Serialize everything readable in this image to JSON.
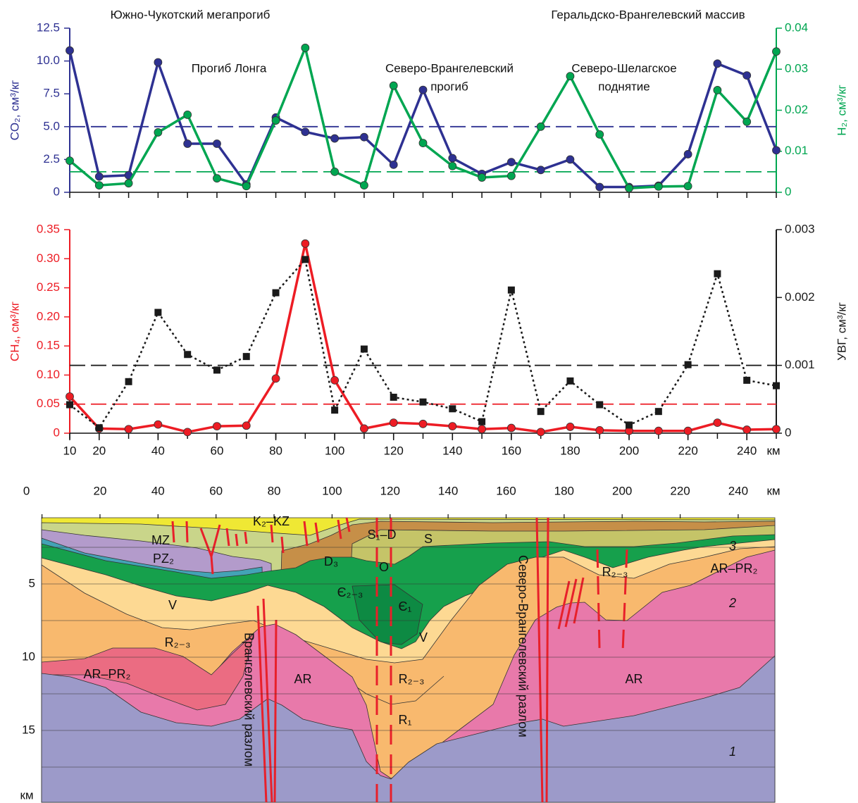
{
  "chart_data": [
    {
      "type": "line",
      "annotations": [
        "Южно-Чукотский мегапрогиб",
        "Геральдско-Врангелевский массив",
        "Прогиб Лонга",
        "Северо-Врангелевский",
        "прогиб",
        "Северо-Шелагское",
        "поднятие"
      ],
      "x": [
        10,
        20,
        30,
        40,
        50,
        60,
        70,
        80,
        90,
        100,
        110,
        120,
        130,
        140,
        150,
        160,
        170,
        180,
        190,
        200,
        210,
        220,
        230,
        240,
        250
      ],
      "xlim": [
        10,
        250
      ],
      "ylim": [
        0,
        12.5
      ],
      "yticks": [
        0,
        2.5,
        {
          "value": 5,
          "label": "5.0"
        },
        7.5,
        {
          "value": 10,
          "label": "10.0"
        },
        12.5
      ],
      "ylabel": "CO₂, см³/кг",
      "y2lim": [
        0,
        0.04
      ],
      "y2ticks": [
        0,
        0.01,
        0.02,
        0.03,
        0.04
      ],
      "y2label": "H₂, см³/кг",
      "hlines": [
        {
          "value": 5,
          "axis": "y",
          "color": "#2e3192"
        },
        {
          "value": 0.005,
          "axis": "y2",
          "color": "#00a651"
        }
      ],
      "series": [
        {
          "color": "#2e3192",
          "marker": "circle",
          "dash": "solid",
          "values": [
            10.8,
            1.2,
            1.3,
            9.9,
            3.7,
            3.7,
            0.6,
            5.7,
            4.6,
            4.1,
            4.2,
            2.1,
            7.8,
            2.6,
            1.4,
            2.3,
            1.7,
            2.5,
            0.4,
            0.4,
            0.5,
            2.9,
            9.8,
            8.9,
            3.2
          ]
        },
        {
          "color": "#00a651",
          "marker": "circle",
          "dash": "solid",
          "axis": "y2",
          "values": [
            0.0077,
            0.0017,
            0.0022,
            0.0146,
            0.0189,
            0.0034,
            0.0015,
            0.0175,
            0.0352,
            0.005,
            0.0017,
            0.026,
            0.012,
            0.0064,
            0.0036,
            0.004,
            0.016,
            0.0283,
            0.0141,
            0.001,
            0.0014,
            0.0015,
            0.0249,
            0.0172,
            0.0343
          ]
        }
      ]
    },
    {
      "type": "line",
      "x": [
        10,
        20,
        30,
        40,
        50,
        60,
        70,
        80,
        90,
        100,
        110,
        120,
        130,
        140,
        150,
        160,
        170,
        180,
        190,
        200,
        210,
        220,
        230,
        240,
        250
      ],
      "xlim": [
        10,
        250
      ],
      "xticks": [
        10,
        20,
        40,
        60,
        80,
        100,
        120,
        140,
        160,
        180,
        200,
        220,
        240
      ],
      "xlabel": "км",
      "ylim": [
        0,
        0.35
      ],
      "yticks": [
        0,
        0.05,
        {
          "value": 0.1,
          "label": "0.10"
        },
        0.15,
        {
          "value": 0.2,
          "label": "0.20"
        },
        0.25,
        {
          "value": 0.3,
          "label": "0.30"
        },
        0.35
      ],
      "ylabel": "CH₄, см³/кг",
      "y2lim": [
        0,
        0.003
      ],
      "y2ticks": [
        0,
        0.001,
        0.002,
        0.003
      ],
      "y2label": "УВГ, см³/кг",
      "hlines": [
        {
          "value": 0.05,
          "axis": "y",
          "color": "#ed1c24"
        },
        {
          "value": 0.001,
          "axis": "y2",
          "color": "#222222"
        }
      ],
      "series": [
        {
          "color": "#ed1c24",
          "marker": "circle",
          "dash": "solid",
          "values": [
            0.063,
            0.008,
            0.007,
            0.015,
            0.002,
            0.012,
            0.013,
            0.094,
            0.326,
            0.091,
            0.008,
            0.018,
            0.016,
            0.012,
            0.007,
            0.009,
            0.002,
            0.011,
            0.005,
            0.004,
            0.004,
            0.004,
            0.018,
            0.006,
            0.007
          ]
        },
        {
          "color": "#1a1a1a",
          "marker": "square",
          "dash": "dotted",
          "axis": "y2",
          "values": [
            0.00042,
            8e-05,
            0.00076,
            0.00178,
            0.00116,
            0.00093,
            0.00113,
            0.00207,
            0.00256,
            0.00034,
            0.00124,
            0.00053,
            0.00046,
            0.00036,
            0.00017,
            0.00211,
            0.00032,
            0.00077,
            0.00042,
            0.00012,
            0.00032,
            0.00101,
            0.00235,
            0.00078,
            0.0007
          ]
        }
      ]
    },
    {
      "type": "section",
      "xlim": [
        0,
        253
      ],
      "xticks": [
        0,
        20,
        40,
        60,
        80,
        100,
        120,
        140,
        160,
        180,
        200,
        220,
        240
      ],
      "xlabel": "км",
      "ylim": [
        0,
        20
      ],
      "yticks": [
        5,
        10,
        15
      ],
      "yminor": [
        2.5,
        7.5,
        12.5,
        17.5
      ],
      "ylabel": "км",
      "labels": [
        "K₂–KZ",
        "MZ",
        "PZ₂",
        "S₁–D",
        "S",
        "D₃",
        "O",
        "Є₂₋₃",
        "Є₁",
        "V",
        "V",
        "R₂₋₃",
        "R₂₋₃",
        "R₁",
        "AR–PR₂",
        "AR",
        "AR",
        "R₂₋₃",
        "AR–PR₂",
        "3",
        "2",
        "1"
      ],
      "faults": [
        "Врангелевский разлом",
        "Северо-Врангелевский разлом"
      ]
    }
  ]
}
